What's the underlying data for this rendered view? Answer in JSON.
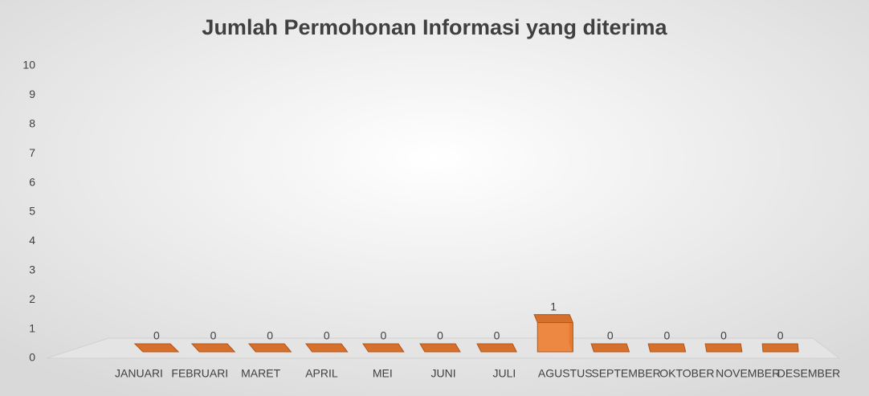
{
  "chart_data": {
    "type": "bar3d",
    "title": "Jumlah Permohonan Informasi yang diterima",
    "categories": [
      "JANUARI",
      "FEBRUARI",
      "MARET",
      "APRIL",
      "MEI",
      "JUNI",
      "JULI",
      "AGUSTUS",
      "SEPTEMBER",
      "OKTOBER",
      "NOVEMBER",
      "DESEMBER"
    ],
    "values": [
      0,
      0,
      0,
      0,
      0,
      0,
      0,
      1,
      0,
      0,
      0,
      0
    ],
    "color": "#ed7d31",
    "ylim": [
      0,
      10
    ],
    "yticks": [
      0,
      1,
      2,
      3,
      4,
      5,
      6,
      7,
      8,
      9,
      10
    ]
  }
}
